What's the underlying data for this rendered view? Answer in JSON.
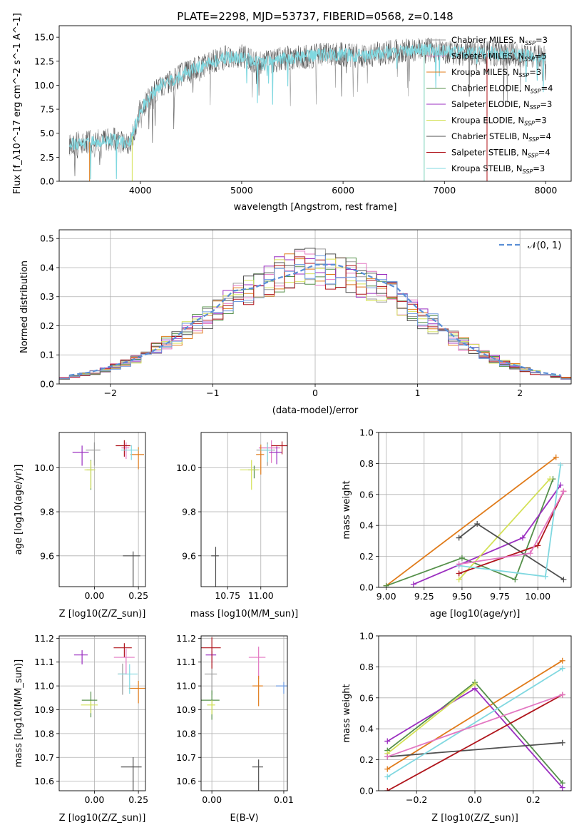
{
  "legend_series": [
    {
      "label": "Chabrier MILES, N$_{SSP}$=3",
      "color": "#9a9a9a"
    },
    {
      "label": "Salpeter MILES, N$_{SSP}$=5",
      "color": "#e377c2"
    },
    {
      "label": "Kroupa MILES, N$_{SSP}$=3",
      "color": "#e07b1a"
    },
    {
      "label": "Chabrier ELODIE, N$_{SSP}$=4",
      "color": "#55904a"
    },
    {
      "label": "Salpeter ELODIE, N$_{SSP}$=3",
      "color": "#9b2fc0"
    },
    {
      "label": "Kroupa ELODIE, N$_{SSP}$=3",
      "color": "#d4e157"
    },
    {
      "label": "Chabrier STELIB, N$_{SSP}$=4",
      "color": "#505050"
    },
    {
      "label": "Salpeter STELIB, N$_{SSP}$=4",
      "color": "#b0151c"
    },
    {
      "label": "Kroupa STELIB, N$_{SSP}$=3",
      "color": "#80d8e0"
    }
  ],
  "chart_data": [
    {
      "id": "spectrum",
      "type": "line",
      "title": "PLATE=2298, MJD=53737, FIBERID=0568, z=0.148",
      "xlabel": "wavelength [Angstrom, rest frame]",
      "ylabel": "Flux [f_λ10^-17 erg cm^-2 s^-1 A^-1]",
      "xlim": [
        3200,
        8250
      ],
      "ylim": [
        0,
        16.2
      ],
      "xticks": [
        4000,
        5000,
        6000,
        7000,
        8000
      ],
      "yticks": [
        0.0,
        2.5,
        5.0,
        7.5,
        10.0,
        12.5,
        15.0
      ],
      "x": [
        3300,
        3500,
        3700,
        3900,
        4000,
        4200,
        4400,
        4600,
        4800,
        5000,
        5200,
        5400,
        5600,
        5800,
        6000,
        6200,
        6400,
        6600,
        6800,
        7000,
        7200,
        7400,
        7600,
        7800,
        8000
      ],
      "y": [
        3.8,
        4.1,
        4.4,
        4.0,
        7.5,
        10.0,
        11.0,
        12.0,
        12.8,
        13.0,
        12.2,
        12.8,
        12.9,
        13.2,
        13.2,
        13.0,
        13.4,
        13.6,
        13.8,
        13.5,
        13.3,
        13.4,
        13.2,
        13.1,
        12.8
      ]
    },
    {
      "id": "residuals",
      "type": "line",
      "xlabel": "(data-model)/error",
      "ylabel": "Normed distribution",
      "xlim": [
        -2.5,
        2.5
      ],
      "ylim": [
        0,
        0.53
      ],
      "xticks": [
        -2,
        -1,
        0,
        1,
        2
      ],
      "yticks": [
        0.0,
        0.1,
        0.2,
        0.3,
        0.4,
        0.5
      ],
      "legend": "$\\mathcal{N}(0,1)$",
      "x": [
        -2.4,
        -2.2,
        -2.0,
        -1.8,
        -1.6,
        -1.4,
        -1.2,
        -1.0,
        -0.8,
        -0.6,
        -0.4,
        -0.2,
        0.0,
        0.2,
        0.4,
        0.6,
        0.8,
        1.0,
        1.2,
        1.4,
        1.6,
        1.8,
        2.0,
        2.2,
        2.4
      ],
      "y": [
        0.03,
        0.04,
        0.06,
        0.08,
        0.11,
        0.15,
        0.21,
        0.25,
        0.32,
        0.33,
        0.36,
        0.38,
        0.41,
        0.41,
        0.39,
        0.36,
        0.33,
        0.26,
        0.21,
        0.15,
        0.11,
        0.08,
        0.06,
        0.04,
        0.03
      ]
    },
    {
      "id": "age_vs_Z",
      "type": "scatter",
      "xlabel": "Z [log10(Z/Z_sun)]",
      "ylabel": "age [log10(age/yr)]",
      "xlim": [
        -0.2,
        0.29
      ],
      "ylim": [
        9.46,
        10.16
      ],
      "xticks": [
        0.0,
        0.25
      ],
      "yticks": [
        9.6,
        9.8,
        10.0
      ],
      "points": [
        {
          "x": 0.0,
          "y": 10.08,
          "c": "#9a9a9a"
        },
        {
          "x": 0.18,
          "y": 10.09,
          "c": "#e377c2"
        },
        {
          "x": 0.25,
          "y": 10.06,
          "c": "#e07b1a"
        },
        {
          "x": -0.02,
          "y": 9.99,
          "c": "#55904a"
        },
        {
          "x": -0.07,
          "y": 10.07,
          "c": "#9b2fc0"
        },
        {
          "x": -0.02,
          "y": 9.99,
          "c": "#d4e157"
        },
        {
          "x": 0.22,
          "y": 9.6,
          "c": "#505050"
        },
        {
          "x": 0.17,
          "y": 10.1,
          "c": "#b0151c"
        },
        {
          "x": 0.21,
          "y": 10.08,
          "c": "#80d8e0"
        }
      ]
    },
    {
      "id": "age_vs_mass",
      "type": "scatter",
      "xlabel": "mass [log10(M/M_sun)]",
      "ylabel": "",
      "xlim": [
        10.55,
        11.2
      ],
      "ylim": [
        9.46,
        10.16
      ],
      "xticks": [
        10.75,
        11.0
      ],
      "yticks": [
        9.6,
        9.8,
        10.0
      ],
      "points": [
        {
          "x": 11.05,
          "y": 10.08,
          "c": "#9a9a9a"
        },
        {
          "x": 11.08,
          "y": 10.09,
          "c": "#e377c2"
        },
        {
          "x": 11.0,
          "y": 10.06,
          "c": "#e07b1a"
        },
        {
          "x": 10.95,
          "y": 9.99,
          "c": "#55904a"
        },
        {
          "x": 11.12,
          "y": 10.07,
          "c": "#9b2fc0"
        },
        {
          "x": 10.93,
          "y": 9.99,
          "c": "#d4e157"
        },
        {
          "x": 10.66,
          "y": 9.6,
          "c": "#505050"
        },
        {
          "x": 11.16,
          "y": 10.1,
          "c": "#b0151c"
        },
        {
          "x": 11.05,
          "y": 10.08,
          "c": "#80d8e0"
        }
      ]
    },
    {
      "id": "mass_weight_vs_age",
      "type": "line",
      "xlabel": "age [log10(age/yr)]",
      "ylabel": "mass weight",
      "xlim": [
        8.95,
        10.22
      ],
      "ylim": [
        0,
        1.0
      ],
      "xticks": [
        9.0,
        9.25,
        9.5,
        9.75,
        10.0
      ],
      "yticks": [
        0.0,
        0.2,
        0.4,
        0.6,
        0.8,
        1.0
      ],
      "series": [
        {
          "c": "#e07b1a",
          "x": [
            9.0,
            10.12
          ],
          "y": [
            0.01,
            0.84
          ]
        },
        {
          "c": "#55904a",
          "x": [
            9.0,
            9.5,
            9.85,
            10.1
          ],
          "y": [
            0.01,
            0.19,
            0.05,
            0.7
          ]
        },
        {
          "c": "#9b2fc0",
          "x": [
            9.18,
            9.9,
            10.15
          ],
          "y": [
            0.02,
            0.32,
            0.66
          ]
        },
        {
          "c": "#d4e157",
          "x": [
            9.48,
            10.08
          ],
          "y": [
            0.05,
            0.7
          ]
        },
        {
          "c": "#505050",
          "x": [
            9.48,
            9.6,
            10.17
          ],
          "y": [
            0.32,
            0.41,
            0.05
          ]
        },
        {
          "c": "#b0151c",
          "x": [
            9.48,
            10.0,
            10.17
          ],
          "y": [
            0.09,
            0.27,
            0.62
          ]
        },
        {
          "c": "#80d8e0",
          "x": [
            9.48,
            10.05,
            10.15
          ],
          "y": [
            0.14,
            0.07,
            0.79
          ]
        },
        {
          "c": "#e377c2",
          "x": [
            9.48,
            9.95,
            10.17
          ],
          "y": [
            0.15,
            0.22,
            0.62
          ]
        }
      ]
    },
    {
      "id": "mass_vs_Z",
      "type": "scatter",
      "xlabel": "Z [log10(Z/Z_sun)]",
      "ylabel": "mass [log10(M/M_sun)]",
      "xlim": [
        -0.2,
        0.29
      ],
      "ylim": [
        10.56,
        11.21
      ],
      "xticks": [
        0.0,
        0.25
      ],
      "yticks": [
        10.6,
        10.7,
        10.8,
        10.9,
        11.0,
        11.1,
        11.2
      ],
      "points": [
        {
          "x": 0.16,
          "y": 11.05,
          "c": "#9a9a9a"
        },
        {
          "x": 0.18,
          "y": 11.12,
          "c": "#e377c2"
        },
        {
          "x": 0.25,
          "y": 10.99,
          "c": "#e07b1a"
        },
        {
          "x": -0.02,
          "y": 10.94,
          "c": "#55904a"
        },
        {
          "x": -0.07,
          "y": 11.13,
          "c": "#9b2fc0"
        },
        {
          "x": -0.02,
          "y": 10.92,
          "c": "#d4e157"
        },
        {
          "x": 0.22,
          "y": 10.66,
          "c": "#505050"
        },
        {
          "x": 0.17,
          "y": 11.16,
          "c": "#b0151c"
        },
        {
          "x": 0.2,
          "y": 11.05,
          "c": "#80d8e0"
        }
      ]
    },
    {
      "id": "mass_vs_EBV",
      "type": "scatter",
      "xlabel": "E(B-V)",
      "ylabel": "",
      "xlim": [
        -0.0015,
        0.0105
      ],
      "ylim": [
        10.56,
        11.21
      ],
      "xticks": [
        0.0,
        0.01
      ],
      "yticks": [
        10.6,
        10.7,
        10.8,
        10.9,
        11.0,
        11.1,
        11.2
      ],
      "points": [
        {
          "x": 0.0,
          "y": 11.05,
          "c": "#9a9a9a"
        },
        {
          "x": 0.0065,
          "y": 11.12,
          "c": "#e377c2"
        },
        {
          "x": 0.0065,
          "y": 11.0,
          "c": "#e07b1a"
        },
        {
          "x": 0.0,
          "y": 10.94,
          "c": "#55904a"
        },
        {
          "x": 0.0,
          "y": 11.13,
          "c": "#9b2fc0"
        },
        {
          "x": 0.0,
          "y": 10.92,
          "c": "#d4e157"
        },
        {
          "x": 0.0065,
          "y": 10.66,
          "c": "#505050"
        },
        {
          "x": 0.0,
          "y": 11.16,
          "c": "#b0151c"
        },
        {
          "x": 0.01,
          "y": 11.0,
          "c": "#6d9be0"
        }
      ]
    },
    {
      "id": "mass_weight_vs_Z",
      "type": "line",
      "xlabel": "Z [log10(Z/Z_sun)]",
      "ylabel": "mass weight",
      "xlim": [
        -0.33,
        0.33
      ],
      "ylim": [
        0,
        1.0
      ],
      "xticks": [
        -0.2,
        0.0,
        0.2
      ],
      "yticks": [
        0.0,
        0.2,
        0.4,
        0.6,
        0.8,
        1.0
      ],
      "series": [
        {
          "c": "#e07b1a",
          "x": [
            -0.3,
            0.3
          ],
          "y": [
            0.14,
            0.84
          ]
        },
        {
          "c": "#55904a",
          "x": [
            -0.3,
            0.0,
            0.3
          ],
          "y": [
            0.26,
            0.7,
            0.05
          ]
        },
        {
          "c": "#9b2fc0",
          "x": [
            -0.3,
            0.0,
            0.3
          ],
          "y": [
            0.32,
            0.66,
            0.02
          ]
        },
        {
          "c": "#d4e157",
          "x": [
            -0.3,
            0.0
          ],
          "y": [
            0.24,
            0.69
          ]
        },
        {
          "c": "#505050",
          "x": [
            -0.3,
            0.3
          ],
          "y": [
            0.22,
            0.31
          ]
        },
        {
          "c": "#b0151c",
          "x": [
            -0.3,
            0.3
          ],
          "y": [
            0.0,
            0.62
          ]
        },
        {
          "c": "#80d8e0",
          "x": [
            -0.3,
            0.3
          ],
          "y": [
            0.09,
            0.79
          ]
        },
        {
          "c": "#e377c2",
          "x": [
            -0.3,
            0.3
          ],
          "y": [
            0.22,
            0.62
          ]
        }
      ]
    }
  ]
}
